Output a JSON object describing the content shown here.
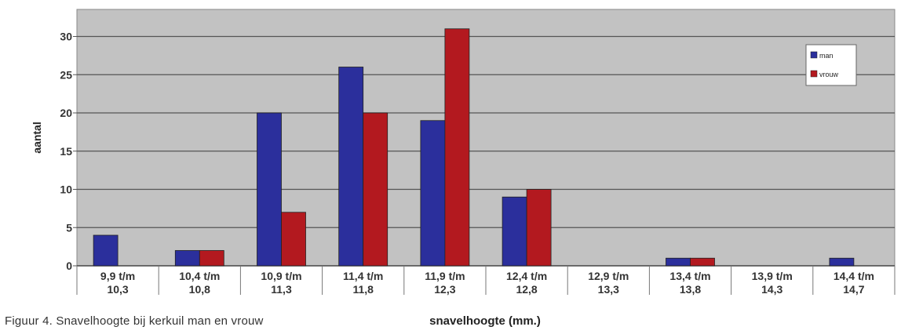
{
  "caption": "Figuur 4. Snavelhoogte bij kerkuil man en vrouw",
  "chart_data": {
    "type": "bar",
    "categories": [
      [
        "9,9 t/m",
        "10,3"
      ],
      [
        "10,4 t/m",
        "10,8"
      ],
      [
        "10,9 t/m",
        "11,3"
      ],
      [
        "11,4 t/m",
        "11,8"
      ],
      [
        "11,9 t/m",
        "12,3"
      ],
      [
        "12,4 t/m",
        "12,8"
      ],
      [
        "12,9 t/m",
        "13,3"
      ],
      [
        "13,4 t/m",
        "13,8"
      ],
      [
        "13,9 t/m",
        "14,3"
      ],
      [
        "14,4 t/m",
        "14,7"
      ]
    ],
    "series": [
      {
        "name": "man",
        "values": [
          4,
          2,
          20,
          26,
          19,
          9,
          0,
          1,
          0,
          1
        ]
      },
      {
        "name": "vrouw",
        "values": [
          0,
          2,
          7,
          20,
          31,
          10,
          0,
          1,
          0,
          0
        ]
      }
    ],
    "xlabel": "snavelhoogte (mm.)",
    "ylabel": "aantal",
    "ylim": [
      0,
      30
    ],
    "yticks": [
      "0",
      "5",
      "10",
      "15",
      "20",
      "25",
      "30"
    ],
    "grid": true,
    "legend_position": "top-right",
    "colors": {
      "man": "#2b2f9c",
      "vrouw": "#b3191f",
      "plot_background": "#c2c2c2",
      "gridline": "#555555",
      "axis_label": "#333333"
    }
  }
}
